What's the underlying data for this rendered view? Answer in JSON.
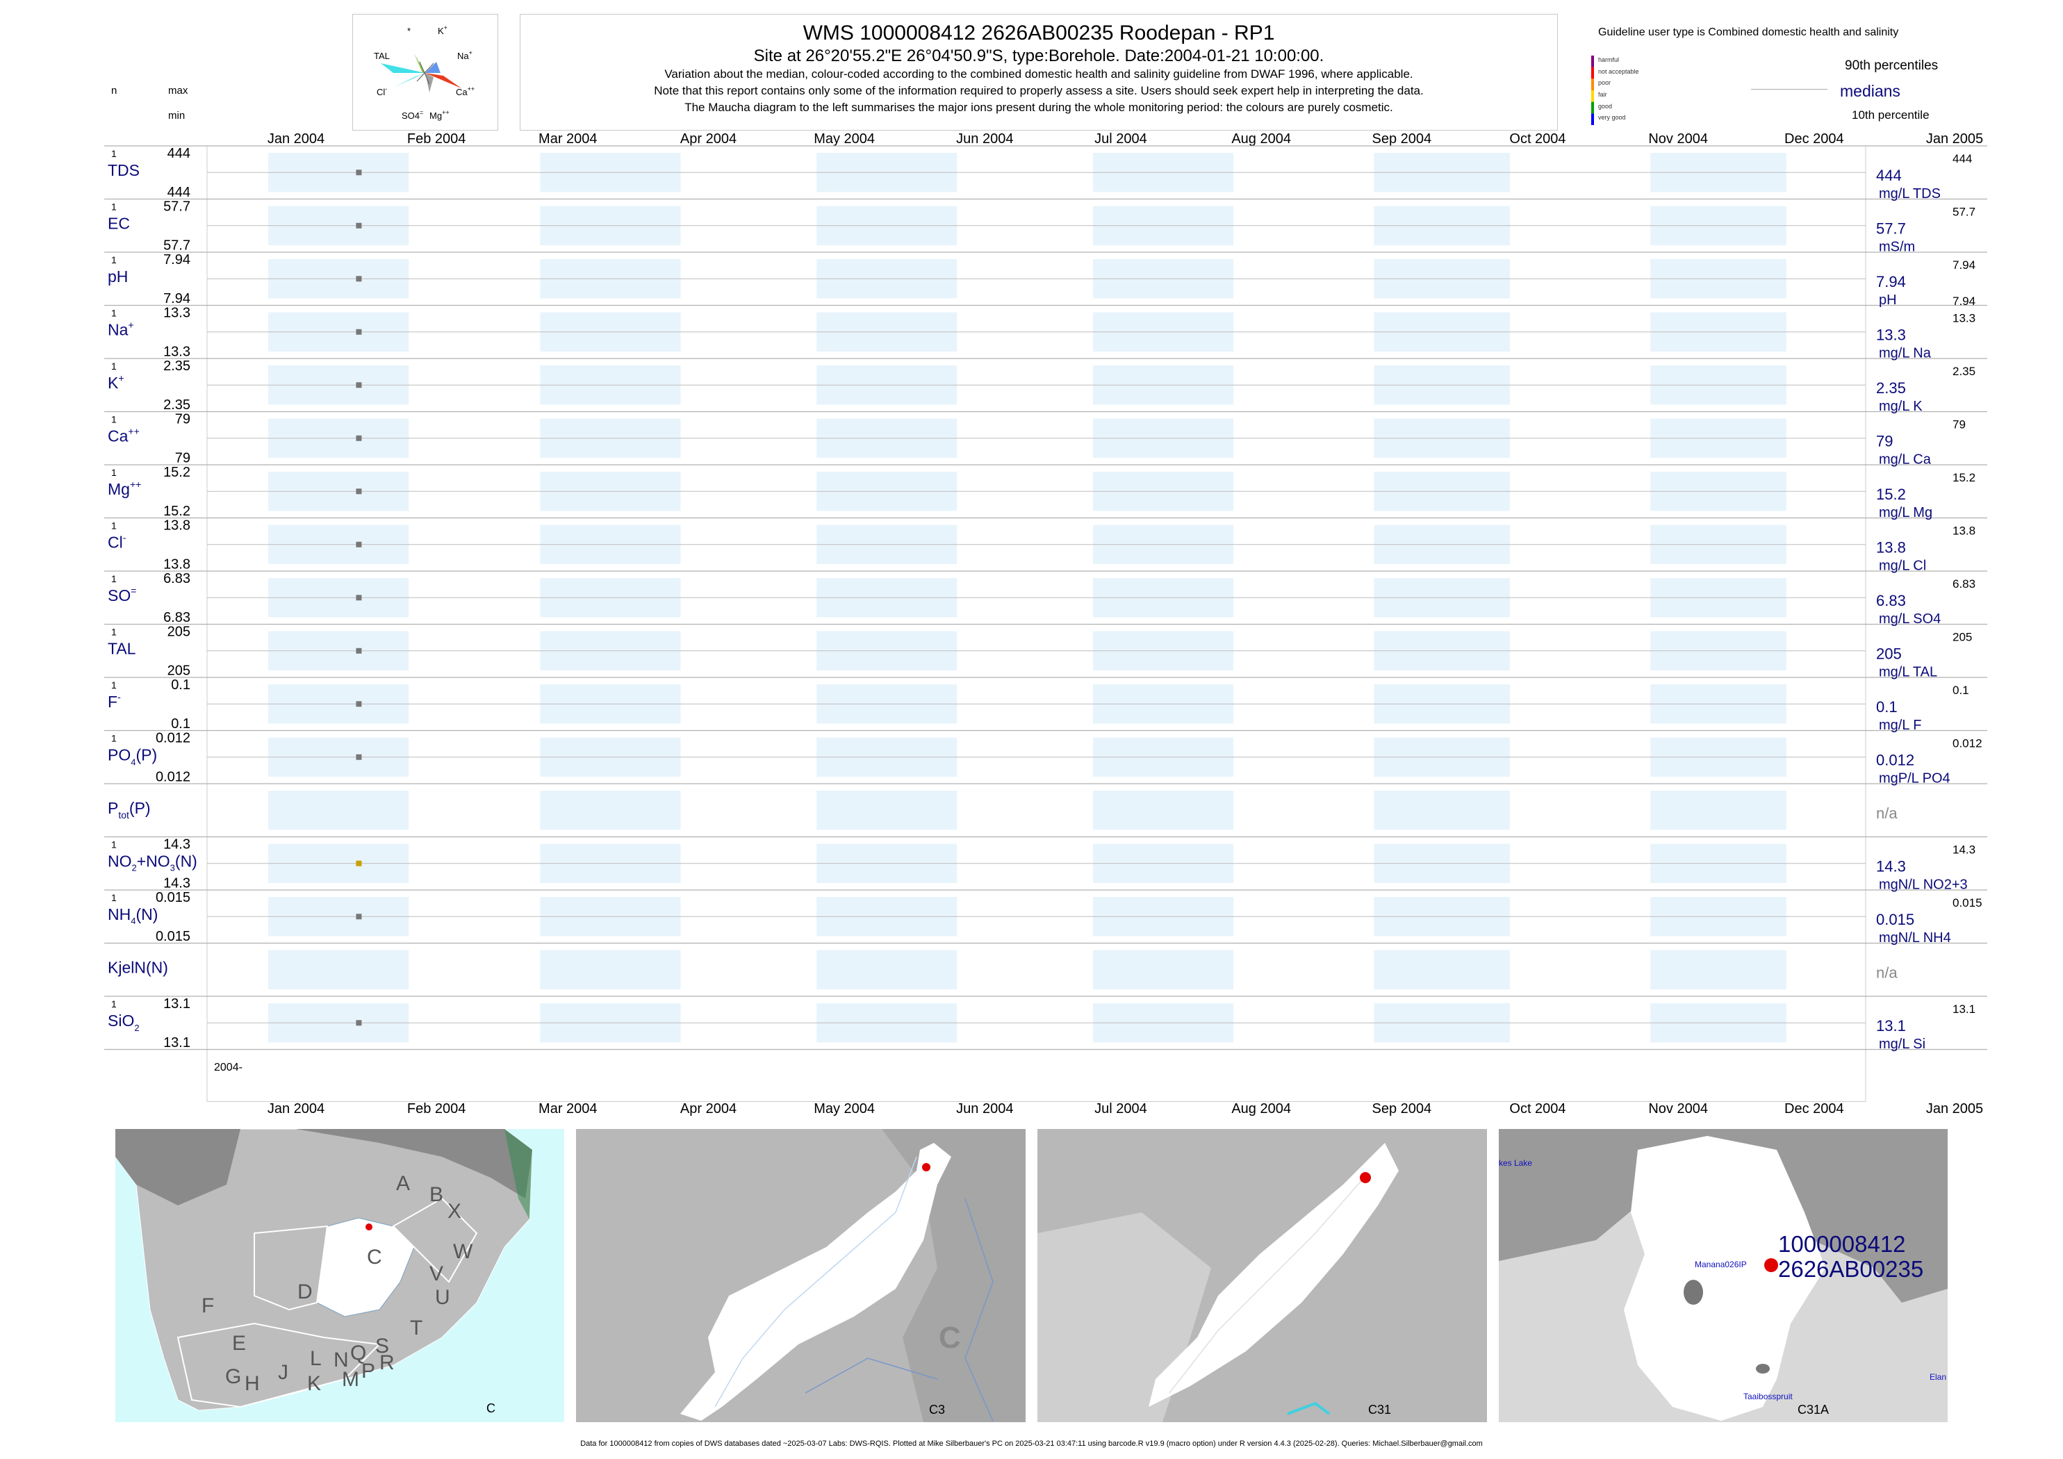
{
  "header": {
    "title": "WMS 1000008412 2626AB00235 Roodepan - RP1",
    "site_line": "Site at 26°20'55.2\"E 26°04'50.9\"S, type:Borehole. Date:2004-01-21 10:00:00.",
    "note1": "Variation about the median,  colour-coded according to the combined domestic health and salinity guideline from DWAF 1996, where applicable.",
    "note2": "Note that this report contains only some of the information required to properly assess a site. Users should seek expert help in interpreting the data.",
    "note3": "The Maucha diagram to the left summarises the major ions present during the whole monitoring period: the colours are purely cosmetic."
  },
  "maucha": {
    "labels": [
      "*",
      "K",
      "TAL",
      "Na",
      "Cl",
      "Ca",
      "SO4",
      "Mg"
    ],
    "sup": {
      "K": "+",
      "Na": "+",
      "Cl": "-",
      "Ca": "++",
      "SO4": "=",
      "Mg": "++"
    }
  },
  "legend": {
    "guideline_text": "Guideline user type is Combined domestic health and salinity",
    "categories": [
      "harmful",
      "not acceptable",
      "poor",
      "fair",
      "good",
      "very good"
    ],
    "colors": [
      "#800080",
      "#ff0000",
      "#ff8c00",
      "#ffd700",
      "#00a000",
      "#0000ff"
    ],
    "p90": "90th percentiles",
    "median": "medians",
    "p10": "10th percentile"
  },
  "columns": {
    "n": "n",
    "max": "max",
    "min": "min"
  },
  "months": [
    "Jan 2004",
    "Feb 2004",
    "Mar 2004",
    "Apr 2004",
    "May 2004",
    "Jun 2004",
    "Jul 2004",
    "Aug 2004",
    "Sep 2004",
    "Oct 2004",
    "Nov 2004",
    "Dec 2004",
    "Jan 2005"
  ],
  "year_label": "2004-",
  "chart_data": {
    "type": "scatter",
    "x_range": [
      "2004-01-01",
      "2005-01-01"
    ],
    "sample_date": "2004-01-21",
    "series": [
      {
        "name": "TDS",
        "n": "1",
        "max": "444",
        "min": "444",
        "median": "444",
        "unit": "mg/L TDS",
        "p90": "444",
        "p10": ""
      },
      {
        "name": "EC",
        "n": "1",
        "max": "57.7",
        "min": "57.7",
        "median": "57.7",
        "unit": "mS/m",
        "p90": "57.7",
        "p10": ""
      },
      {
        "name": "pH",
        "n": "1",
        "max": "7.94",
        "min": "7.94",
        "median": "7.94",
        "unit": "pH",
        "p90": "7.94",
        "p10": "7.94"
      },
      {
        "name": "Na",
        "n": "1",
        "max": "13.3",
        "min": "13.3",
        "median": "13.3",
        "unit": "mg/L Na",
        "p90": "13.3",
        "p10": ""
      },
      {
        "name": "K",
        "n": "1",
        "max": "2.35",
        "min": "2.35",
        "median": "2.35",
        "unit": "mg/L K",
        "p90": "2.35",
        "p10": ""
      },
      {
        "name": "Ca",
        "n": "1",
        "max": "79",
        "min": "79",
        "median": "79",
        "unit": "mg/L Ca",
        "p90": "79",
        "p10": ""
      },
      {
        "name": "Mg",
        "n": "1",
        "max": "15.2",
        "min": "15.2",
        "median": "15.2",
        "unit": "mg/L Mg",
        "p90": "15.2",
        "p10": ""
      },
      {
        "name": "Cl",
        "n": "1",
        "max": "13.8",
        "min": "13.8",
        "median": "13.8",
        "unit": "mg/L Cl",
        "p90": "13.8",
        "p10": ""
      },
      {
        "name": "SO4",
        "n": "1",
        "max": "6.83",
        "min": "6.83",
        "median": "6.83",
        "unit": "mg/L SO4",
        "p90": "6.83",
        "p10": ""
      },
      {
        "name": "TAL",
        "n": "1",
        "max": "205",
        "min": "205",
        "median": "205",
        "unit": "mg/L TAL",
        "p90": "205",
        "p10": ""
      },
      {
        "name": "F",
        "n": "1",
        "max": "0.1",
        "min": "0.1",
        "median": "0.1",
        "unit": "mg/L F",
        "p90": "0.1",
        "p10": ""
      },
      {
        "name": "PO4(P)",
        "n": "1",
        "max": "0.012",
        "min": "0.012",
        "median": "0.012",
        "unit": "mgP/L PO4",
        "p90": "0.012",
        "p10": ""
      },
      {
        "name": "Ptot(P)",
        "n": "",
        "max": "",
        "min": "",
        "median": "n/a",
        "unit": "",
        "p90": "",
        "p10": ""
      },
      {
        "name": "NO2+NO3(N)",
        "n": "1",
        "max": "14.3",
        "min": "14.3",
        "median": "14.3",
        "unit": "mgN/L NO2+3",
        "p90": "14.3",
        "p10": ""
      },
      {
        "name": "NH4(N)",
        "n": "1",
        "max": "0.015",
        "min": "0.015",
        "median": "0.015",
        "unit": "mgN/L NH4",
        "p90": "0.015",
        "p10": ""
      },
      {
        "name": "KjelN(N)",
        "n": "",
        "max": "",
        "min": "",
        "median": "n/a",
        "unit": "",
        "p90": "",
        "p10": ""
      },
      {
        "name": "SiO2",
        "n": "1",
        "max": "13.1",
        "min": "13.1",
        "median": "13.1",
        "unit": "mg/L Si",
        "p90": "13.1",
        "p10": ""
      }
    ],
    "point_colors": {
      "default": "#777777",
      "NO2+NO3(N)": "#c8a000"
    }
  },
  "maps": {
    "panels": [
      "C",
      "C3",
      "C31",
      "C31A"
    ],
    "region_letters": [
      "A",
      "B",
      "X",
      "W",
      "C",
      "D",
      "V",
      "U",
      "T",
      "F",
      "E",
      "G",
      "H",
      "J",
      "K",
      "L",
      "M",
      "N",
      "P",
      "Q",
      "R",
      "S"
    ],
    "c3_letter": "C",
    "site_ids": [
      "1000008412",
      "2626AB00235"
    ],
    "place_labels": [
      "Manana026IP",
      "Taaibosspruit",
      "kes Lake",
      "Elan"
    ]
  },
  "footer": "Data for 1000008412 from copies of DWS databases dated ~2025-03-07 Labs: DWS-RQIS. Plotted at Mike Silberbauer's PC on 2025-03-21 03:47:11 using barcode.R v19.9 (macro option) under R version 4.4.3 (2025-02-28). Queries: Michael.Silberbauer@gmail.com"
}
